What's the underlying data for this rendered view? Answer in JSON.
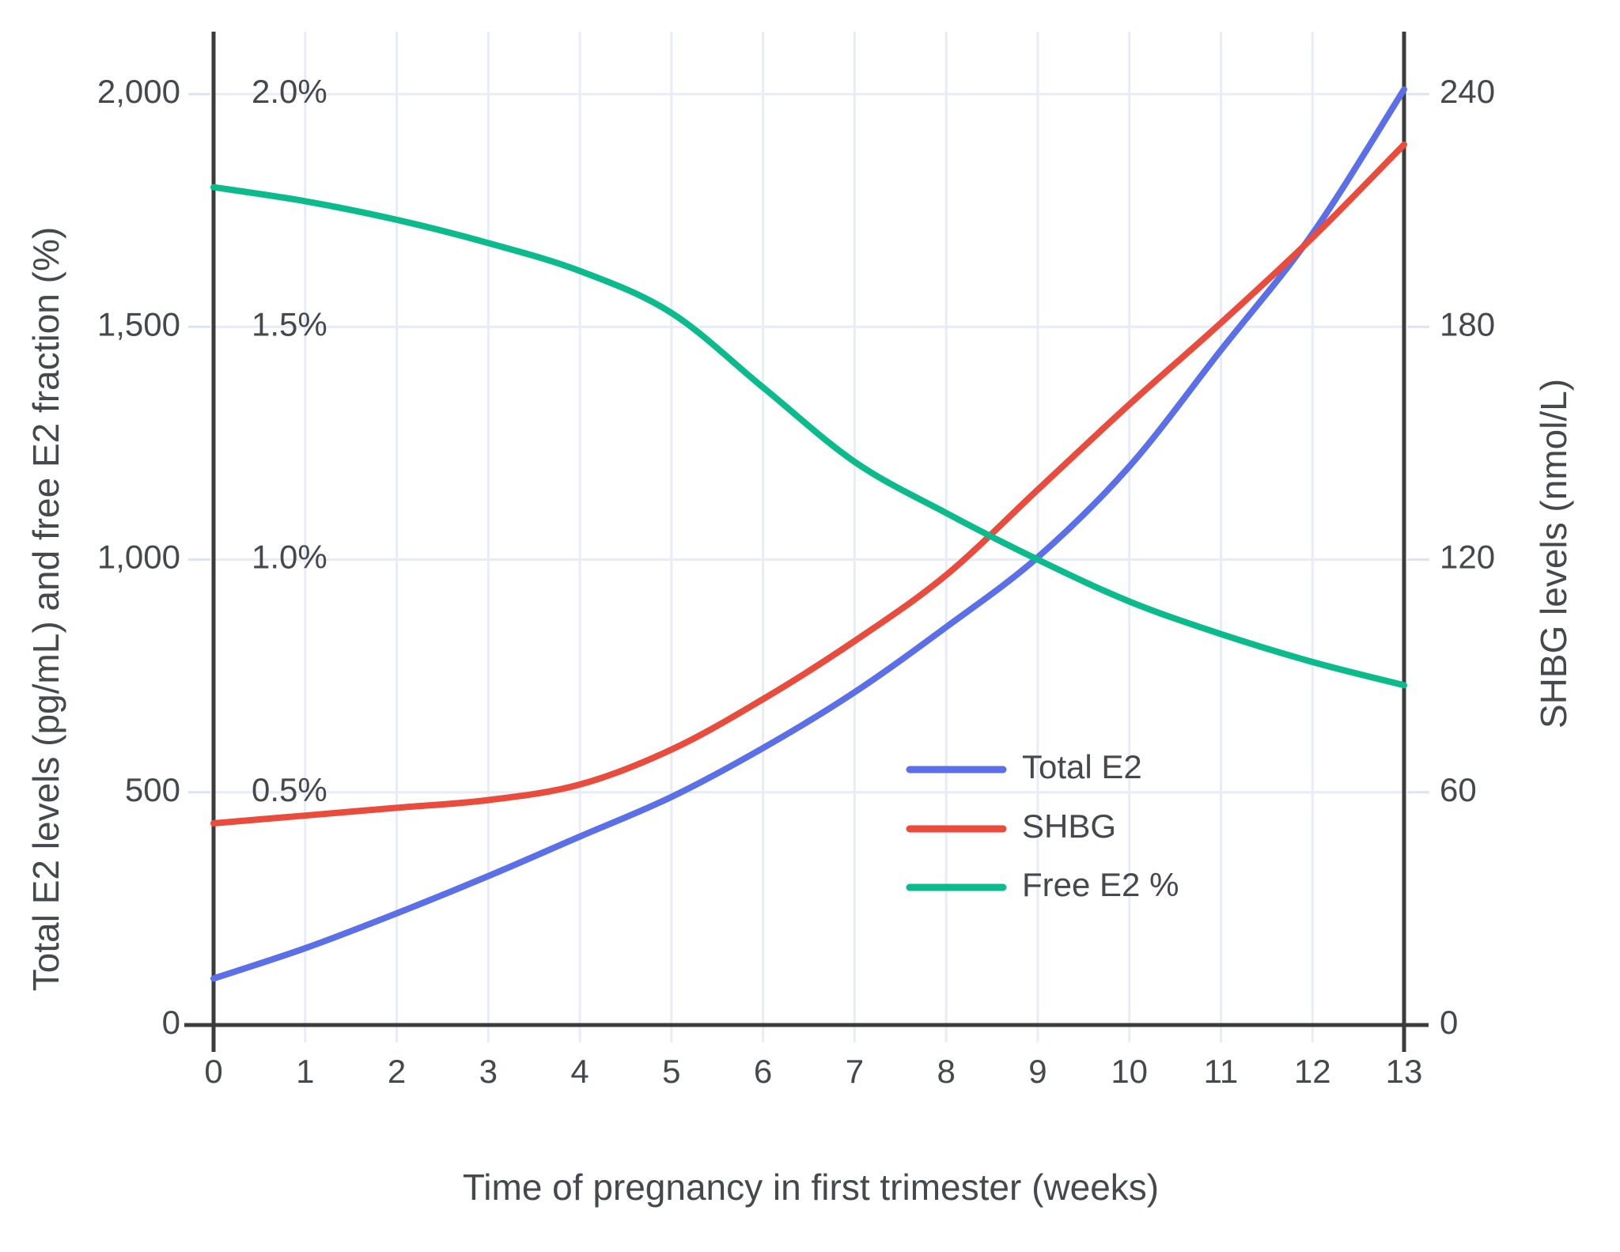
{
  "chart_data": {
    "type": "line",
    "title": "",
    "xlabel": "Time of pregnancy in first trimester (weeks)",
    "ylabel_left": "Total E2 levels (pg/mL) and free E2 fraction (%)",
    "ylabel_right": "SHBG levels (nmol/L)",
    "x": [
      0,
      1,
      2,
      3,
      4,
      5,
      6,
      7,
      8,
      9,
      10,
      11,
      12,
      13
    ],
    "x_axis": {
      "tick_labels": [
        "0",
        "1",
        "2",
        "3",
        "4",
        "5",
        "6",
        "7",
        "8",
        "9",
        "10",
        "11",
        "12",
        "13"
      ],
      "range": [
        0,
        13
      ]
    },
    "left_axis": {
      "tick_labels": [
        "2,000",
        "1,500",
        "1,000",
        "500",
        "0"
      ],
      "tick_values": [
        2000,
        1500,
        1000,
        500,
        0
      ],
      "percent_tick_labels": [
        "2.0%",
        "1.5%",
        "1.0%",
        "0.5%"
      ],
      "percent_tick_values": [
        2.0,
        1.5,
        1.0,
        0.5
      ],
      "range": [
        0,
        2000
      ]
    },
    "right_axis": {
      "tick_labels": [
        "240",
        "180",
        "120",
        "60",
        "0"
      ],
      "tick_values": [
        240,
        180,
        120,
        60,
        0
      ],
      "range": [
        0,
        240
      ]
    },
    "grid": true,
    "legend_position": "inside-lower-right",
    "series": [
      {
        "name": "Total E2",
        "axis": "left",
        "unit": "pg/mL",
        "color": "#5B70E8",
        "values": [
          100,
          165,
          240,
          320,
          405,
          490,
          595,
          715,
          855,
          1005,
          1200,
          1450,
          1700,
          2010
        ]
      },
      {
        "name": "SHBG",
        "axis": "right",
        "unit": "nmol/L",
        "color": "#E94C3C",
        "values": [
          52,
          54,
          56,
          58,
          62,
          71,
          84,
          99,
          116,
          138,
          160,
          181,
          203,
          227
        ]
      },
      {
        "name": "Free E2 %",
        "axis": "left-percent",
        "unit": "%",
        "color": "#0BBB8C",
        "values": [
          1.8,
          1.77,
          1.73,
          1.68,
          1.62,
          1.53,
          1.37,
          1.21,
          1.1,
          1.0,
          0.91,
          0.84,
          0.78,
          0.73
        ]
      }
    ]
  },
  "colors": {
    "background": "#ffffff",
    "axis_line": "#3C3C3C",
    "grid_line": "#E8ECF7",
    "tick_stub": "#DDE3F0",
    "text": "#45484C",
    "total_e2": "#5B70E8",
    "shbg": "#E94C3C",
    "free_e2": "#0BBB8C"
  }
}
